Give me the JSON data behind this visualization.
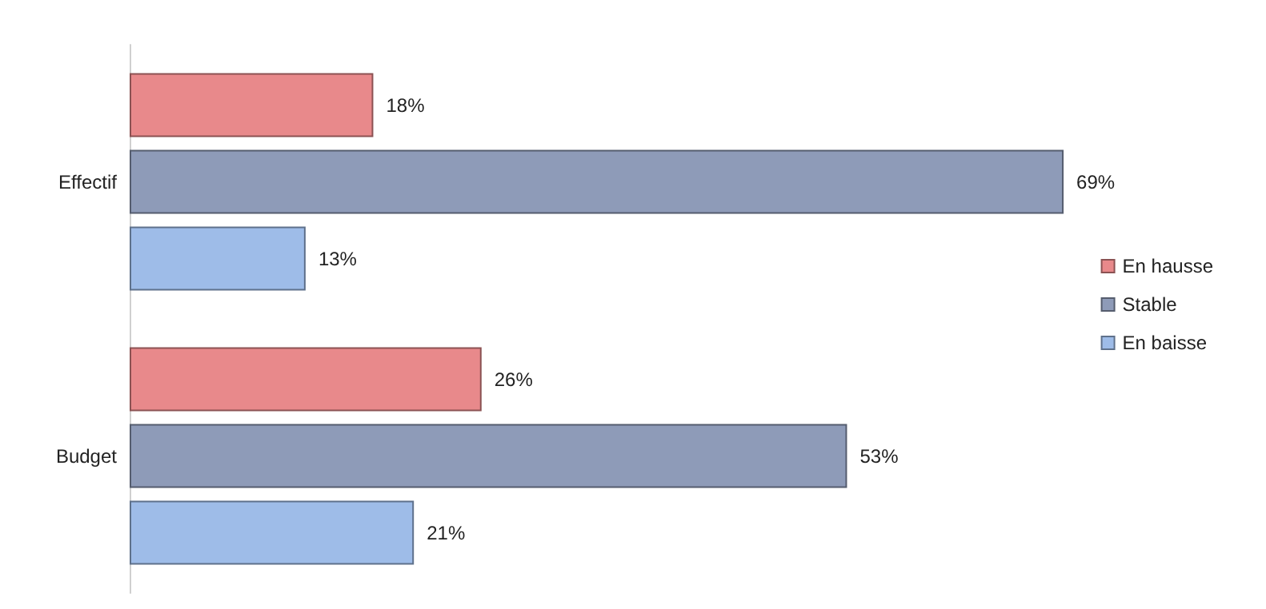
{
  "chart_data": {
    "type": "bar",
    "orientation": "horizontal",
    "categories": [
      "Effectif",
      "Budget"
    ],
    "series": [
      {
        "name": "En hausse",
        "color": "#e8898b",
        "values": [
          18,
          26
        ],
        "value_labels": [
          "18%",
          "26%"
        ]
      },
      {
        "name": "Stable",
        "color": "#8e9bb8",
        "values": [
          69,
          53
        ],
        "value_labels": [
          "69%",
          "53%"
        ]
      },
      {
        "name": "En baisse",
        "color": "#9ebce8",
        "values": [
          13,
          21
        ],
        "value_labels": [
          "13%",
          "21%"
        ]
      }
    ],
    "legend": "right"
  }
}
